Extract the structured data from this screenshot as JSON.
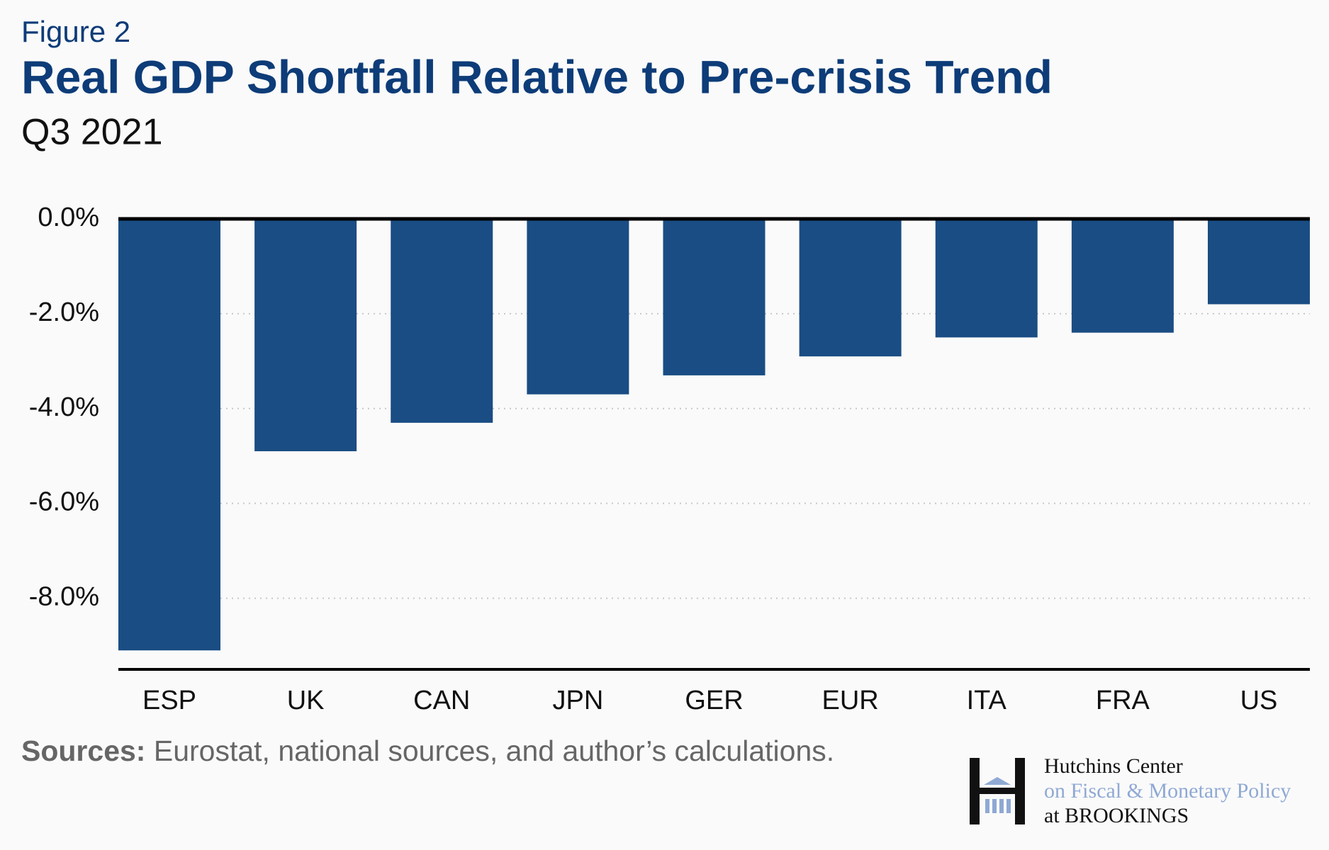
{
  "chart_data": {
    "type": "bar",
    "kicker": "Figure 2",
    "title": "Real GDP Shortfall Relative to Pre-crisis Trend",
    "subtitle": "Q3 2021",
    "categories": [
      "ESP",
      "UK",
      "CAN",
      "JPN",
      "GER",
      "EUR",
      "ITA",
      "FRA",
      "US"
    ],
    "values": [
      -9.1,
      -4.9,
      -4.3,
      -3.7,
      -3.3,
      -2.9,
      -2.5,
      -2.4,
      -1.8
    ],
    "color": "#1a4d84",
    "ylim": [
      -9.5,
      0
    ],
    "yticks": [
      {
        "value": 0,
        "label": "0.0%"
      },
      {
        "value": -2,
        "label": "-2.0%"
      },
      {
        "value": -4,
        "label": "-4.0%"
      },
      {
        "value": -6,
        "label": "-6.0%"
      },
      {
        "value": -8,
        "label": "-8.0%"
      }
    ],
    "grid": true,
    "source_label": "Sources:",
    "source": "Eurostat, national sources, and author’s calculations."
  },
  "logo": {
    "line1": "Hutchins Center",
    "line2": "on Fiscal & Monetary Policy",
    "line3": "at BROOKINGS"
  }
}
